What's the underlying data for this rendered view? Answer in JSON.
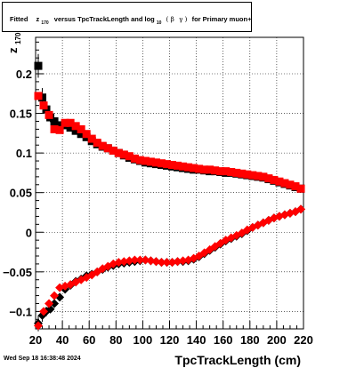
{
  "chart_data": {
    "type": "scatter",
    "title_parts": {
      "prefix": "Fitted",
      "z": "z",
      "z_sub": "170",
      "mid": "versus TpcTrackLength and log",
      "log_sub": "10",
      "paren_open": "(",
      "beta": "β",
      "gamma": "γ",
      "paren_close": ")",
      "suffix": "for Primary muon+"
    },
    "xlabel": "TpcTrackLength (cm)",
    "ylabel": "z",
    "ylabel_sub": "170",
    "xlim": [
      20,
      220
    ],
    "ylim": [
      -0.122,
      0.246
    ],
    "xticks": [
      20,
      40,
      60,
      80,
      100,
      120,
      140,
      160,
      180,
      200,
      220
    ],
    "yticks": [
      -0.1,
      -0.05,
      0,
      0.05,
      0.1,
      0.15,
      0.2
    ],
    "ytick_labels": [
      "−0.1",
      "−0.05",
      "0",
      "0.05",
      "0.1",
      "0.15",
      "0.2"
    ],
    "grid": true,
    "series": [
      {
        "color": "#000000",
        "marker": "square",
        "points": [
          [
            22,
            0.21,
            0.015
          ],
          [
            25,
            0.17,
            0.012
          ],
          [
            28,
            0.155,
            0.008
          ],
          [
            31,
            0.145,
            0.006
          ],
          [
            34,
            0.14,
            0.005
          ],
          [
            38,
            0.135,
            0.004
          ],
          [
            42,
            0.135,
            0.003
          ],
          [
            46,
            0.132,
            0.003
          ],
          [
            50,
            0.128,
            0.003
          ],
          [
            54,
            0.124,
            0.003
          ],
          [
            58,
            0.12,
            0.003
          ],
          [
            62,
            0.115,
            0.003
          ],
          [
            66,
            0.111,
            0.003
          ],
          [
            70,
            0.108,
            0.003
          ],
          [
            74,
            0.106,
            0.003
          ],
          [
            78,
            0.103,
            0.003
          ],
          [
            82,
            0.1,
            0.003
          ],
          [
            86,
            0.097,
            0.003
          ],
          [
            90,
            0.094,
            0.003
          ],
          [
            94,
            0.092,
            0.003
          ],
          [
            98,
            0.09,
            0.003
          ],
          [
            102,
            0.088,
            0.003
          ],
          [
            106,
            0.087,
            0.003
          ],
          [
            110,
            0.086,
            0.003
          ],
          [
            114,
            0.085,
            0.003
          ],
          [
            118,
            0.084,
            0.003
          ],
          [
            122,
            0.083,
            0.003
          ],
          [
            126,
            0.082,
            0.003
          ],
          [
            130,
            0.081,
            0.003
          ],
          [
            134,
            0.08,
            0.003
          ],
          [
            138,
            0.079,
            0.003
          ],
          [
            142,
            0.079,
            0.003
          ],
          [
            146,
            0.078,
            0.003
          ],
          [
            150,
            0.077,
            0.003
          ],
          [
            154,
            0.077,
            0.003
          ],
          [
            158,
            0.076,
            0.003
          ],
          [
            162,
            0.075,
            0.003
          ],
          [
            166,
            0.075,
            0.003
          ],
          [
            170,
            0.074,
            0.003
          ],
          [
            174,
            0.073,
            0.003
          ],
          [
            178,
            0.072,
            0.003
          ],
          [
            182,
            0.071,
            0.003
          ],
          [
            186,
            0.07,
            0.003
          ],
          [
            190,
            0.069,
            0.003
          ],
          [
            194,
            0.067,
            0.003
          ],
          [
            198,
            0.065,
            0.003
          ],
          [
            202,
            0.063,
            0.003
          ],
          [
            206,
            0.061,
            0.003
          ],
          [
            210,
            0.059,
            0.003
          ],
          [
            214,
            0.057,
            0.003
          ],
          [
            218,
            0.055,
            0.003
          ]
        ]
      },
      {
        "color": "#ff0000",
        "marker": "square",
        "points": [
          [
            22,
            0.172
          ],
          [
            26,
            0.16
          ],
          [
            30,
            0.148
          ],
          [
            34,
            0.13
          ],
          [
            38,
            0.129
          ],
          [
            42,
            0.138
          ],
          [
            46,
            0.138
          ],
          [
            50,
            0.134
          ],
          [
            54,
            0.13
          ],
          [
            58,
            0.124
          ],
          [
            62,
            0.118
          ],
          [
            66,
            0.113
          ],
          [
            70,
            0.109
          ],
          [
            74,
            0.106
          ],
          [
            78,
            0.103
          ],
          [
            82,
            0.1
          ],
          [
            86,
            0.098
          ],
          [
            90,
            0.096
          ],
          [
            94,
            0.093
          ],
          [
            98,
            0.091
          ],
          [
            102,
            0.09
          ],
          [
            106,
            0.089
          ],
          [
            110,
            0.088
          ],
          [
            114,
            0.087
          ],
          [
            118,
            0.086
          ],
          [
            122,
            0.085
          ],
          [
            126,
            0.084
          ],
          [
            130,
            0.083
          ],
          [
            134,
            0.082
          ],
          [
            138,
            0.081
          ],
          [
            142,
            0.08
          ],
          [
            146,
            0.079
          ],
          [
            150,
            0.079
          ],
          [
            154,
            0.078
          ],
          [
            158,
            0.077
          ],
          [
            162,
            0.077
          ],
          [
            166,
            0.076
          ],
          [
            170,
            0.075
          ],
          [
            174,
            0.074
          ],
          [
            178,
            0.073
          ],
          [
            182,
            0.072
          ],
          [
            186,
            0.071
          ],
          [
            190,
            0.07
          ],
          [
            194,
            0.068
          ],
          [
            198,
            0.066
          ],
          [
            202,
            0.064
          ],
          [
            206,
            0.062
          ],
          [
            210,
            0.06
          ],
          [
            214,
            0.058
          ],
          [
            218,
            0.055
          ]
        ]
      },
      {
        "color": "#000000",
        "marker": "diamond",
        "points": [
          [
            22,
            -0.115,
            0.01
          ],
          [
            25,
            -0.105,
            0.008
          ],
          [
            28,
            -0.1,
            0.006
          ],
          [
            31,
            -0.097,
            0.005
          ],
          [
            34,
            -0.09,
            0.004
          ],
          [
            38,
            -0.082,
            0.004
          ],
          [
            42,
            -0.072,
            0.004
          ],
          [
            46,
            -0.067,
            0.003
          ],
          [
            50,
            -0.062,
            0.003
          ],
          [
            54,
            -0.059,
            0.003
          ],
          [
            58,
            -0.055,
            0.003
          ],
          [
            62,
            -0.053,
            0.003
          ],
          [
            66,
            -0.05,
            0.003
          ],
          [
            70,
            -0.047,
            0.003
          ],
          [
            74,
            -0.044,
            0.003
          ],
          [
            78,
            -0.042,
            0.003
          ],
          [
            82,
            -0.04,
            0.003
          ],
          [
            86,
            -0.039,
            0.003
          ],
          [
            90,
            -0.038,
            0.003
          ],
          [
            94,
            -0.037,
            0.003
          ],
          [
            98,
            -0.036,
            0.003
          ],
          [
            102,
            -0.035,
            0.003
          ],
          [
            106,
            -0.036,
            0.003
          ],
          [
            110,
            -0.037,
            0.003
          ],
          [
            114,
            -0.038,
            0.003
          ],
          [
            118,
            -0.038,
            0.003
          ],
          [
            122,
            -0.038,
            0.003
          ],
          [
            126,
            -0.037,
            0.003
          ],
          [
            130,
            -0.037,
            0.003
          ],
          [
            134,
            -0.036,
            0.003
          ],
          [
            138,
            -0.034,
            0.003
          ],
          [
            142,
            -0.031,
            0.003
          ],
          [
            146,
            -0.027,
            0.003
          ],
          [
            150,
            -0.023,
            0.003
          ],
          [
            154,
            -0.019,
            0.003
          ],
          [
            158,
            -0.015,
            0.003
          ],
          [
            162,
            -0.011,
            0.003
          ],
          [
            166,
            -0.008,
            0.003
          ],
          [
            170,
            -0.005,
            0.003
          ],
          [
            174,
            -0.002,
            0.003
          ],
          [
            178,
            0.002,
            0.003
          ],
          [
            182,
            0.006,
            0.003
          ],
          [
            186,
            0.009,
            0.003
          ],
          [
            190,
            0.012,
            0.003
          ],
          [
            194,
            0.015,
            0.003
          ],
          [
            198,
            0.018,
            0.003
          ],
          [
            202,
            0.02,
            0.003
          ],
          [
            206,
            0.022,
            0.003
          ],
          [
            210,
            0.024,
            0.003
          ],
          [
            214,
            0.026,
            0.003
          ],
          [
            218,
            0.029,
            0.003
          ]
        ]
      },
      {
        "color": "#ff0000",
        "marker": "diamond",
        "points": [
          [
            22,
            -0.118
          ],
          [
            26,
            -0.1
          ],
          [
            30,
            -0.09
          ],
          [
            34,
            -0.08
          ],
          [
            38,
            -0.07
          ],
          [
            42,
            -0.068
          ],
          [
            46,
            -0.066
          ],
          [
            50,
            -0.063
          ],
          [
            54,
            -0.06
          ],
          [
            58,
            -0.057
          ],
          [
            62,
            -0.054
          ],
          [
            66,
            -0.05
          ],
          [
            70,
            -0.046
          ],
          [
            74,
            -0.043
          ],
          [
            78,
            -0.04
          ],
          [
            82,
            -0.038
          ],
          [
            86,
            -0.037
          ],
          [
            90,
            -0.036
          ],
          [
            94,
            -0.035
          ],
          [
            98,
            -0.035
          ],
          [
            102,
            -0.035
          ],
          [
            106,
            -0.036
          ],
          [
            110,
            -0.037
          ],
          [
            114,
            -0.038
          ],
          [
            118,
            -0.038
          ],
          [
            122,
            -0.038
          ],
          [
            126,
            -0.037
          ],
          [
            130,
            -0.036
          ],
          [
            134,
            -0.035
          ],
          [
            138,
            -0.033
          ],
          [
            142,
            -0.03
          ],
          [
            146,
            -0.026
          ],
          [
            150,
            -0.022
          ],
          [
            154,
            -0.018
          ],
          [
            158,
            -0.014
          ],
          [
            162,
            -0.01
          ],
          [
            166,
            -0.007
          ],
          [
            170,
            -0.004
          ],
          [
            174,
            -0.001
          ],
          [
            178,
            0.003
          ],
          [
            182,
            0.006
          ],
          [
            186,
            0.009
          ],
          [
            190,
            0.012
          ],
          [
            194,
            0.015
          ],
          [
            198,
            0.018
          ],
          [
            202,
            0.02
          ],
          [
            206,
            0.022
          ],
          [
            210,
            0.024
          ],
          [
            214,
            0.026
          ],
          [
            218,
            0.029
          ]
        ]
      }
    ]
  },
  "footer": {
    "timestamp": "Wed Sep 18 16:38:48 2024"
  }
}
